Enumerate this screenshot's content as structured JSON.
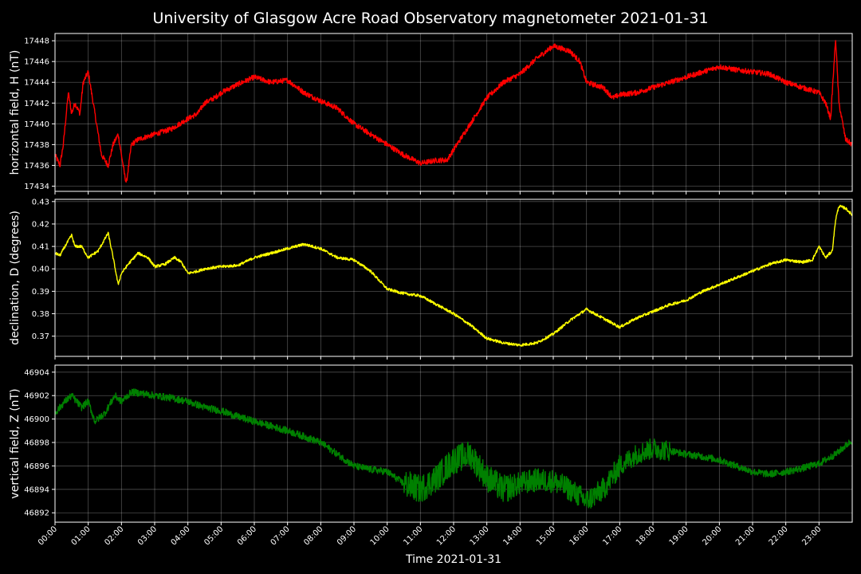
{
  "chart_data": {
    "type": "line",
    "title": "University of Glasgow Acre Road Observatory magnetometer 2021-01-31",
    "xlabel": "Time 2021-01-31",
    "x_ticks": [
      "00:00",
      "01:00",
      "02:00",
      "03:00",
      "04:00",
      "05:00",
      "06:00",
      "07:00",
      "08:00",
      "09:00",
      "10:00",
      "11:00",
      "12:00",
      "13:00",
      "14:00",
      "15:00",
      "16:00",
      "17:00",
      "18:00",
      "19:00",
      "20:00",
      "21:00",
      "22:00",
      "23:00"
    ],
    "xlim": [
      0,
      24
    ],
    "grid": true,
    "panels": [
      {
        "name": "horizontal field",
        "ylabel": "horizontal field, H (nT)",
        "color": "#ff0000",
        "ylim": [
          17433.5,
          17448.7
        ],
        "y_ticks": [
          17434,
          17436,
          17438,
          17440,
          17442,
          17444,
          17446,
          17448
        ],
        "noise": 0.25,
        "x": [
          0,
          0.15,
          0.25,
          0.4,
          0.5,
          0.6,
          0.75,
          0.85,
          1.0,
          1.1,
          1.25,
          1.4,
          1.6,
          1.75,
          1.9,
          2.0,
          2.1,
          2.15,
          2.3,
          2.5,
          3.0,
          3.5,
          4.0,
          4.3,
          4.5,
          4.8,
          5.0,
          5.5,
          6.0,
          6.5,
          7.0,
          7.5,
          8.0,
          8.5,
          9.0,
          9.5,
          10.0,
          10.5,
          11.0,
          11.5,
          11.8,
          12.0,
          12.5,
          13.0,
          13.5,
          14.0,
          14.5,
          15.0,
          15.5,
          15.8,
          16.0,
          16.5,
          16.8,
          17.0,
          17.5,
          18.0,
          18.5,
          19.0,
          19.5,
          20.0,
          20.5,
          21.0,
          21.5,
          22.0,
          22.5,
          23.0,
          23.2,
          23.35,
          23.5,
          23.6,
          23.8,
          24.0
        ],
        "y": [
          17437,
          17436,
          17438,
          17443,
          17441,
          17442,
          17441,
          17444,
          17445,
          17443,
          17440,
          17437,
          17436,
          17438,
          17439,
          17437,
          17435,
          17434.3,
          17438,
          17438.5,
          17439,
          17439.5,
          17440.5,
          17441,
          17442,
          17442.5,
          17443,
          17443.8,
          17444.5,
          17444,
          17444.2,
          17443,
          17442.2,
          17441.5,
          17440,
          17439,
          17438,
          17437,
          17436.2,
          17436.5,
          17436.5,
          17437.5,
          17440,
          17442.5,
          17444,
          17444.8,
          17446.3,
          17447.5,
          17447,
          17446,
          17444,
          17443.5,
          17442.5,
          17442.8,
          17443,
          17443.5,
          17444,
          17444.5,
          17445,
          17445.5,
          17445.2,
          17445,
          17444.8,
          17444,
          17443.5,
          17443,
          17442,
          17440.5,
          17448.2,
          17442,
          17438.5,
          17438
        ]
      },
      {
        "name": "declination",
        "ylabel": "declination, D (degrees)",
        "color": "#ffff00",
        "ylim": [
          0.361,
          0.431
        ],
        "y_ticks": [
          0.37,
          0.38,
          0.39,
          0.4,
          0.41,
          0.42,
          0.43
        ],
        "noise": 0.0006,
        "x": [
          0,
          0.15,
          0.3,
          0.5,
          0.6,
          0.8,
          1.0,
          1.3,
          1.6,
          1.75,
          1.9,
          2.0,
          2.2,
          2.5,
          2.8,
          3.0,
          3.3,
          3.6,
          3.8,
          4.0,
          4.3,
          4.5,
          5.0,
          5.5,
          6.0,
          6.5,
          7.0,
          7.5,
          8.0,
          8.5,
          9.0,
          9.5,
          10.0,
          10.5,
          11.0,
          11.5,
          12.0,
          12.5,
          13.0,
          13.5,
          14.0,
          14.5,
          15.0,
          15.5,
          16.0,
          16.5,
          17.0,
          17.5,
          18.0,
          18.5,
          19.0,
          19.5,
          20.0,
          20.5,
          21.0,
          21.5,
          22.0,
          22.5,
          22.8,
          23.0,
          23.2,
          23.4,
          23.5,
          23.6,
          23.8,
          24.0
        ],
        "y": [
          0.407,
          0.406,
          0.41,
          0.415,
          0.41,
          0.41,
          0.405,
          0.408,
          0.416,
          0.405,
          0.393,
          0.398,
          0.402,
          0.407,
          0.405,
          0.401,
          0.402,
          0.405,
          0.403,
          0.398,
          0.399,
          0.4,
          0.401,
          0.4015,
          0.405,
          0.407,
          0.409,
          0.411,
          0.409,
          0.405,
          0.404,
          0.399,
          0.391,
          0.389,
          0.388,
          0.384,
          0.38,
          0.375,
          0.369,
          0.367,
          0.366,
          0.367,
          0.371,
          0.377,
          0.382,
          0.378,
          0.374,
          0.378,
          0.381,
          0.384,
          0.386,
          0.39,
          0.393,
          0.396,
          0.399,
          0.402,
          0.404,
          0.403,
          0.404,
          0.41,
          0.405,
          0.408,
          0.422,
          0.428,
          0.427,
          0.424
        ]
      },
      {
        "name": "vertical field",
        "ylabel": "vertical field, Z (nT)",
        "color": "#008000",
        "ylim": [
          46891.2,
          46904.6
        ],
        "y_ticks": [
          46892,
          46894,
          46896,
          46898,
          46900,
          46902,
          46904
        ],
        "noise": 0.3,
        "noise_spans": [
          [
            10.5,
            13.8,
            1.2
          ],
          [
            13.8,
            17,
            1.0
          ],
          [
            17,
            18.5,
            0.9
          ]
        ],
        "x": [
          0,
          0.3,
          0.5,
          0.8,
          1.0,
          1.2,
          1.5,
          1.8,
          2.0,
          2.3,
          2.6,
          3.0,
          3.5,
          4.0,
          4.5,
          5.0,
          5.5,
          6.0,
          6.5,
          7.0,
          7.5,
          8.0,
          8.5,
          9.0,
          9.5,
          10.0,
          10.5,
          11.0,
          11.5,
          12.0,
          12.5,
          13.0,
          13.5,
          14.0,
          14.5,
          15.0,
          15.5,
          16.0,
          16.5,
          17.0,
          17.5,
          18.0,
          18.5,
          19.0,
          19.5,
          20.0,
          20.5,
          21.0,
          21.5,
          22.0,
          22.5,
          23.0,
          23.5,
          24.0
        ],
        "y": [
          46900.5,
          46901.5,
          46902,
          46901,
          46901.5,
          46899.8,
          46900.5,
          46902,
          46901.5,
          46902.3,
          46902.2,
          46902,
          46901.8,
          46901.5,
          46901,
          46900.7,
          46900.2,
          46899.8,
          46899.4,
          46899,
          46898.5,
          46898,
          46897,
          46896,
          46895.7,
          46895.5,
          46894.5,
          46894,
          46895,
          46896.5,
          46897,
          46895,
          46894,
          46894.5,
          46894.8,
          46894.7,
          46894,
          46893,
          46894,
          46896,
          46897,
          46897.5,
          46897.3,
          46897,
          46896.8,
          46896.5,
          46896,
          46895.5,
          46895.3,
          46895.5,
          46895.8,
          46896.2,
          46897,
          46898.2
        ]
      }
    ]
  }
}
